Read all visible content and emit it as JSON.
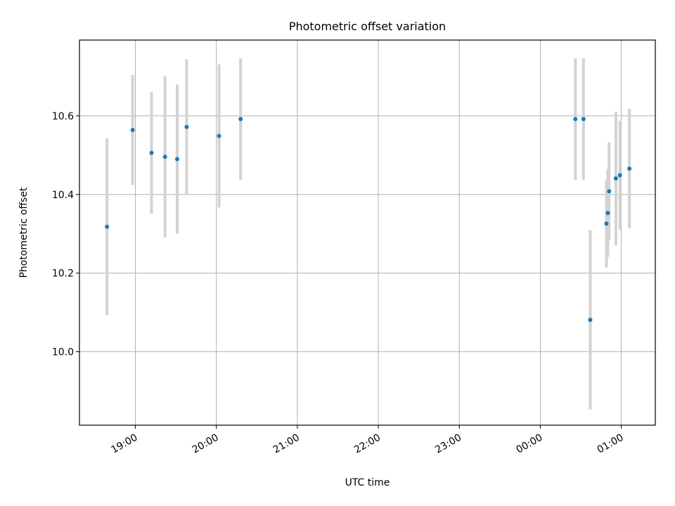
{
  "chart_data": {
    "type": "scatter",
    "title": "Photometric offset variation",
    "xlabel": "UTC time",
    "ylabel": "Photometric offset",
    "grid": true,
    "x_ticks": [
      {
        "value": 60,
        "label": "19:00"
      },
      {
        "value": 120,
        "label": "20:00"
      },
      {
        "value": 180,
        "label": "21:00"
      },
      {
        "value": 240,
        "label": "22:00"
      },
      {
        "value": 300,
        "label": "23:00"
      },
      {
        "value": 360,
        "label": "00:00"
      },
      {
        "value": 420,
        "label": "01:00"
      }
    ],
    "y_ticks": [
      {
        "value": 10.0,
        "label": "10.0"
      },
      {
        "value": 10.2,
        "label": "10.2"
      },
      {
        "value": 10.4,
        "label": "10.4"
      },
      {
        "value": 10.6,
        "label": "10.6"
      }
    ],
    "xlim": [
      18.6,
      445.2
    ],
    "ylim": [
      9.813,
      10.793
    ],
    "colors": {
      "marker": "#1f77b4",
      "errorbar": "#d3d3d3",
      "grid": "#b0b0b0"
    },
    "points": [
      {
        "t": "18:39",
        "y": 10.318,
        "err": 0.225
      },
      {
        "t": "18:58",
        "y": 10.564,
        "err": 0.14
      },
      {
        "t": "19:12",
        "y": 10.506,
        "err": 0.155
      },
      {
        "t": "19:22",
        "y": 10.496,
        "err": 0.205
      },
      {
        "t": "19:31",
        "y": 10.49,
        "err": 0.19
      },
      {
        "t": "19:38",
        "y": 10.572,
        "err": 0.172
      },
      {
        "t": "20:02",
        "y": 10.549,
        "err": 0.182
      },
      {
        "t": "20:18",
        "y": 10.592,
        "err": 0.155
      },
      {
        "t": "00:26",
        "y": 10.592,
        "err": 0.155
      },
      {
        "t": "00:32",
        "y": 10.592,
        "err": 0.155
      },
      {
        "t": "00:37",
        "y": 10.081,
        "err": 0.228
      },
      {
        "t": "00:49",
        "y": 10.326,
        "err": 0.112
      },
      {
        "t": "00:50",
        "y": 10.353,
        "err": 0.112
      },
      {
        "t": "00:51",
        "y": 10.408,
        "err": 0.125
      },
      {
        "t": "00:56",
        "y": 10.441,
        "err": 0.17
      },
      {
        "t": "00:59",
        "y": 10.449,
        "err": 0.139
      },
      {
        "t": "01:06",
        "y": 10.466,
        "err": 0.152
      }
    ]
  }
}
